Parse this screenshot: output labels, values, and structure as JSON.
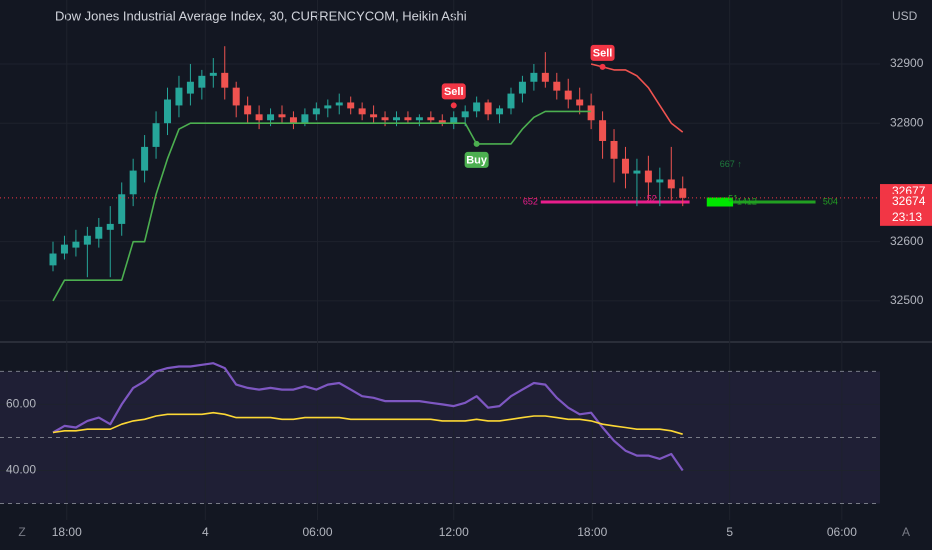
{
  "chart_data": [
    {
      "type": "candlestick",
      "title": "Dow Jones Industrial Average Index, 30, CURRENCYCOM, Heikin Ashi",
      "currency": "USD",
      "up_color": "#26a69a",
      "down_color": "#ef5350",
      "candles": [
        [
          32560,
          32600,
          32550,
          32580
        ],
        [
          32580,
          32610,
          32570,
          32595
        ],
        [
          32590,
          32620,
          32575,
          32600
        ],
        [
          32595,
          32625,
          32540,
          32610
        ],
        [
          32605,
          32640,
          32590,
          32625
        ],
        [
          32620,
          32660,
          32540,
          32630
        ],
        [
          32630,
          32700,
          32610,
          32680
        ],
        [
          32680,
          32740,
          32660,
          32720
        ],
        [
          32720,
          32780,
          32700,
          32760
        ],
        [
          32760,
          32820,
          32740,
          32800
        ],
        [
          32800,
          32860,
          32780,
          32840
        ],
        [
          32830,
          32880,
          32810,
          32860
        ],
        [
          32850,
          32900,
          32830,
          32870
        ],
        [
          32860,
          32890,
          32840,
          32880
        ],
        [
          32880,
          32910,
          32860,
          32885
        ],
        [
          32885,
          32930,
          32840,
          32860
        ],
        [
          32860,
          32870,
          32810,
          32830
        ],
        [
          32830,
          32845,
          32800,
          32815
        ],
        [
          32815,
          32830,
          32790,
          32805
        ],
        [
          32805,
          32825,
          32795,
          32815
        ],
        [
          32815,
          32830,
          32800,
          32810
        ],
        [
          32810,
          32820,
          32790,
          32800
        ],
        [
          32800,
          32825,
          32795,
          32815
        ],
        [
          32815,
          32835,
          32805,
          32825
        ],
        [
          32825,
          32840,
          32810,
          32830
        ],
        [
          32830,
          32850,
          32815,
          32835
        ],
        [
          32835,
          32845,
          32815,
          32825
        ],
        [
          32825,
          32835,
          32805,
          32815
        ],
        [
          32815,
          32830,
          32800,
          32810
        ],
        [
          32810,
          32820,
          32795,
          32805
        ],
        [
          32805,
          32820,
          32795,
          32810
        ],
        [
          32810,
          32820,
          32800,
          32805
        ],
        [
          32805,
          32815,
          32795,
          32810
        ],
        [
          32810,
          32820,
          32800,
          32805
        ],
        [
          32805,
          32815,
          32795,
          32800
        ],
        [
          32800,
          32820,
          32790,
          32810
        ],
        [
          32810,
          32830,
          32795,
          32820
        ],
        [
          32820,
          32845,
          32810,
          32835
        ],
        [
          32835,
          32840,
          32805,
          32815
        ],
        [
          32815,
          32830,
          32800,
          32825
        ],
        [
          32825,
          32860,
          32815,
          32850
        ],
        [
          32850,
          32880,
          32835,
          32870
        ],
        [
          32870,
          32900,
          32855,
          32885
        ],
        [
          32885,
          32920,
          32860,
          32870
        ],
        [
          32870,
          32885,
          32840,
          32855
        ],
        [
          32855,
          32875,
          32825,
          32840
        ],
        [
          32840,
          32860,
          32815,
          32830
        ],
        [
          32830,
          32850,
          32790,
          32805
        ],
        [
          32805,
          32820,
          32740,
          32770
        ],
        [
          32770,
          32790,
          32700,
          32740
        ],
        [
          32740,
          32760,
          32690,
          32715
        ],
        [
          32715,
          32740,
          32660,
          32720
        ],
        [
          32720,
          32745,
          32670,
          32700
        ],
        [
          32700,
          32725,
          32660,
          32705
        ],
        [
          32705,
          32760,
          32670,
          32690
        ],
        [
          32690,
          32710,
          32660,
          32674
        ]
      ],
      "series": [
        {
          "color": "#4caf50",
          "values": [
            32500,
            32535,
            32535,
            32535,
            32535,
            32535,
            32535,
            32600,
            32600,
            32680,
            32740,
            32790,
            32800,
            32800,
            32800,
            32800,
            32800,
            32800,
            32800,
            32800,
            32800,
            32800,
            32800,
            32800,
            32800,
            32800,
            32800,
            32800,
            32800,
            32800,
            32800,
            32800,
            32800,
            32800,
            32800,
            32800,
            32800,
            32765,
            32765,
            32765,
            32765,
            32790,
            32810,
            32820,
            32820,
            32820,
            32820,
            32820,
            null,
            null,
            null,
            null,
            null,
            null,
            null,
            null
          ]
        },
        {
          "color": "#ef5350",
          "values": [
            null,
            null,
            null,
            null,
            null,
            null,
            null,
            null,
            null,
            null,
            null,
            null,
            null,
            null,
            null,
            null,
            null,
            null,
            null,
            null,
            null,
            null,
            null,
            null,
            null,
            null,
            null,
            null,
            null,
            null,
            null,
            null,
            null,
            null,
            null,
            null,
            null,
            null,
            null,
            null,
            null,
            null,
            null,
            null,
            null,
            null,
            null,
            32900,
            32895,
            32890,
            32890,
            32880,
            32860,
            32830,
            32800,
            32785
          ]
        }
      ],
      "signals": [
        {
          "text": "Sell",
          "x": 35,
          "y": 32830,
          "color": "#f23645",
          "side": "above"
        },
        {
          "text": "Buy",
          "x": 37,
          "y": 32765,
          "color": "#4caf50",
          "side": "below"
        },
        {
          "text": "Sell",
          "x": 48,
          "y": 32895,
          "color": "#f23645",
          "side": "above"
        }
      ],
      "levels": [
        {
          "y": 32667,
          "x": [
            42.6,
            55.6
          ],
          "color": "#e91e8c",
          "kind": "line"
        },
        {
          "y": 32667,
          "x": [
            57.1,
            59.4
          ],
          "color": "#00e600",
          "kind": "block"
        },
        {
          "y": 32667,
          "x": [
            59.4,
            66.6
          ],
          "color": "#22a022",
          "kind": "line"
        }
      ],
      "notes": [
        {
          "text": "652",
          "x": 41.7,
          "y": 32667,
          "color": "#e91e8c"
        },
        {
          "text": "52",
          "x": 52.3,
          "y": 32672,
          "color": "#e91e8c"
        },
        {
          "text": "51",
          "x": 59.4,
          "y": 32672,
          "color": "#22a022"
        },
        {
          "text": "1412",
          "x": 60.6,
          "y": 32667,
          "color": "#22a022"
        },
        {
          "text": "504",
          "x": 67.9,
          "y": 32667,
          "color": "#22a022"
        },
        {
          "text": "667 ↑",
          "x": 59.2,
          "y": 32730,
          "color": "#1e7a3c"
        }
      ],
      "price_tags": [
        32677,
        32674
      ],
      "countdown": "23:13",
      "ylim": [
        32434,
        33008
      ],
      "yticks": [
        32500,
        32600,
        32800,
        32900
      ],
      "xlim": [
        -4.63,
        72.23
      ]
    },
    {
      "type": "line",
      "series": [
        {
          "color": "#7e57c2",
          "values": [
            51.5,
            53.5,
            53,
            55,
            56,
            54,
            60,
            65,
            67,
            70,
            71,
            71.5,
            71.5,
            72,
            72.5,
            71,
            66,
            65,
            64.5,
            65,
            64.5,
            64.5,
            65.5,
            64.5,
            66,
            66.5,
            64.5,
            62.5,
            62,
            61,
            61,
            61,
            61,
            60.5,
            60,
            59.5,
            60.5,
            62.5,
            59,
            59.5,
            62.5,
            64.5,
            66.5,
            66,
            62,
            59,
            57,
            57.5,
            53,
            49,
            46,
            44.5,
            44.5,
            43.5,
            45,
            40
          ]
        },
        {
          "color": "#fdd835",
          "values": [
            51.5,
            52,
            52,
            52.5,
            52.5,
            52.5,
            54,
            55,
            55.5,
            56.5,
            57,
            57,
            57,
            57,
            57.5,
            57,
            56,
            56,
            56,
            56,
            55.5,
            55.5,
            56,
            56,
            56,
            56,
            55.5,
            55.5,
            55.5,
            55.5,
            55.5,
            55.5,
            55.5,
            55.5,
            55,
            55,
            55,
            55.5,
            55,
            55,
            55.5,
            56,
            56.5,
            56.5,
            56,
            55.5,
            55.5,
            55,
            54,
            53.5,
            53,
            52.5,
            52.5,
            52.5,
            52,
            51
          ]
        }
      ],
      "bands": [
        30,
        50,
        70
      ],
      "ylim": [
        25,
        78
      ],
      "yticks": [
        {
          "value": 40,
          "label": "40.00"
        },
        {
          "value": 60,
          "label": "60.00"
        }
      ],
      "xlim": [
        -4.63,
        72.23
      ],
      "xticks": [
        {
          "value": 1.2,
          "label": "18:00"
        },
        {
          "value": 13.3,
          "label": "4"
        },
        {
          "value": 23.1,
          "label": "06:00"
        },
        {
          "value": 35.0,
          "label": "12:00"
        },
        {
          "value": 47.1,
          "label": "18:00"
        },
        {
          "value": 59.1,
          "label": "5"
        },
        {
          "value": 68.9,
          "label": "06:00"
        }
      ],
      "corner_left": "Z",
      "corner_right": "A"
    }
  ]
}
